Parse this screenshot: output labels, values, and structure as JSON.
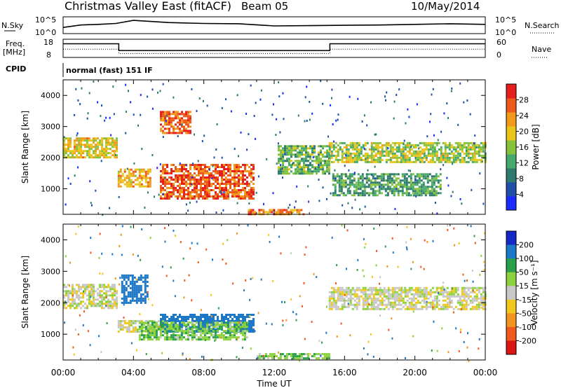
{
  "header": {
    "title": "Christmas Valley East (fitACF)",
    "beam": "Beam 05",
    "date": "10/May/2014"
  },
  "summary": {
    "nsky_label": "N.Sky",
    "nsky_ticks": [
      "10^5",
      "10^0"
    ],
    "nsearch_label": "N.Search",
    "nsearch_ticks": [
      "10^5",
      "10^0"
    ],
    "freq_label": [
      "Freq.",
      "[MHz]"
    ],
    "freq_ticks": [
      "18",
      "8"
    ],
    "nave_label": "Nave",
    "nave_ticks": [
      "60",
      "0"
    ],
    "cpid_label": "CPID",
    "cpid_text": "normal (fast) 151 IF"
  },
  "chart_data": [
    {
      "type": "line",
      "title": "",
      "series": [
        {
          "name": "N.Sky",
          "x": [
            "00:00",
            "01:00",
            "02:00",
            "03:00",
            "04:00",
            "06:00",
            "08:00",
            "10:00",
            "12:00",
            "14:00",
            "16:00",
            "18:00",
            "20:00",
            "22:00",
            "24:00"
          ],
          "log_values": [
            2.0,
            2.8,
            3.0,
            3.3,
            4.3,
            3.6,
            3.3,
            3.2,
            2.5,
            2.6,
            2.7,
            2.8,
            3.0,
            3.2,
            3.0
          ]
        },
        {
          "name": "Freq",
          "x": [
            "00:00",
            "03:10",
            "03:10",
            "15:10",
            "15:10",
            "24:00"
          ],
          "values": [
            15.5,
            15.5,
            11.8,
            11.8,
            15.5,
            15.5
          ]
        },
        {
          "name": "Nave",
          "x": [
            "00:00",
            "03:10",
            "03:10",
            "15:10",
            "15:10",
            "24:00"
          ],
          "values": [
            27,
            27,
            13,
            13,
            27,
            27
          ]
        }
      ],
      "freq_ylim": [
        8,
        18
      ],
      "nave_ylim": [
        0,
        60
      ]
    },
    {
      "type": "heatmap",
      "quantity": "Power",
      "ylabel": "Slant Range [km]",
      "yticks": [
        "1000",
        "2000",
        "3000",
        "4000"
      ],
      "ylim": [
        180,
        4500
      ],
      "colorbar_title": "Power [dB]",
      "colorbar_ticks": [
        "4",
        "8",
        "12",
        "16",
        "20",
        "24",
        "28"
      ],
      "colorbar_range": [
        0,
        32
      ],
      "colors": [
        "#1a2bff",
        "#1f4fa8",
        "#2f7a6e",
        "#46a86a",
        "#86c23c",
        "#e8c619",
        "#f29a1c",
        "#ec5a1e",
        "#e61e1e"
      ],
      "features": [
        {
          "t0": 0.0,
          "t1": 3.1,
          "r0": 2000,
          "r1": 2650,
          "level": 20
        },
        {
          "t0": 3.1,
          "t1": 5.0,
          "r0": 1100,
          "r1": 1650,
          "level": 22
        },
        {
          "t0": 5.5,
          "t1": 10.8,
          "r0": 700,
          "r1": 1800,
          "level": 27
        },
        {
          "t0": 5.5,
          "t1": 7.2,
          "r0": 2800,
          "r1": 3500,
          "level": 26
        },
        {
          "t0": 10.5,
          "t1": 13.7,
          "r0": 150,
          "r1": 350,
          "level": 25
        },
        {
          "t0": 12.2,
          "t1": 15.1,
          "r0": 1500,
          "r1": 2400,
          "level": 14
        },
        {
          "t0": 15.1,
          "t1": 24.0,
          "r0": 1850,
          "r1": 2500,
          "level": 17
        },
        {
          "t0": 15.3,
          "t1": 21.5,
          "r0": 800,
          "r1": 1500,
          "level": 12
        }
      ]
    },
    {
      "type": "heatmap",
      "quantity": "Velocity",
      "ylabel": "Slant Range [km]",
      "yticks": [
        "1000",
        "2000",
        "3000",
        "4000"
      ],
      "ylim": [
        180,
        4500
      ],
      "colorbar_title": "Velocity [m s⁻¹]",
      "colorbar_ticks": [
        "200",
        "100",
        "50",
        "15",
        "-15",
        "-50",
        "-100",
        "-200"
      ],
      "colors": [
        "#1428c8",
        "#1e78c8",
        "#2aa04a",
        "#8cd23c",
        "#c8c8c8",
        "#f0c81e",
        "#f0961e",
        "#f05a1e",
        "#dc1414"
      ],
      "features": [
        {
          "t0": 0.0,
          "t1": 3.1,
          "r0": 1800,
          "r1": 2600,
          "velocity": 0
        },
        {
          "t0": 3.1,
          "t1": 6.0,
          "r0": 1050,
          "r1": 1450,
          "velocity": 0
        },
        {
          "t0": 3.3,
          "t1": 4.8,
          "r0": 2000,
          "r1": 2900,
          "velocity": 150
        },
        {
          "t0": 5.5,
          "t1": 10.8,
          "r0": 1050,
          "r1": 1650,
          "velocity": 150
        },
        {
          "t0": 4.3,
          "t1": 10.5,
          "r0": 800,
          "r1": 1400,
          "velocity": 40
        },
        {
          "t0": 11.0,
          "t1": 15.1,
          "r0": 200,
          "r1": 400,
          "velocity": 40
        },
        {
          "t0": 15.1,
          "t1": 24.0,
          "r0": 1800,
          "r1": 2500,
          "velocity": 0
        }
      ]
    }
  ],
  "x_axis": {
    "label": "Time UT",
    "ticks": [
      "00:00",
      "04:00",
      "08:00",
      "12:00",
      "16:00",
      "20:00",
      "00:00"
    ],
    "range_hours": [
      0,
      24
    ]
  }
}
